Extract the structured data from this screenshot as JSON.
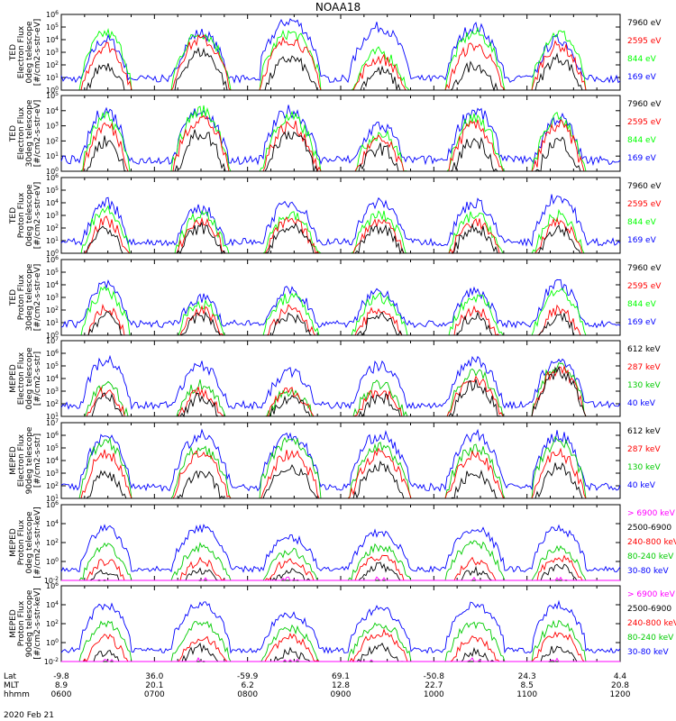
{
  "title": "NOAA18",
  "date_label": "2020 Feb 21",
  "chart_data": [
    {
      "type": "line",
      "title": "NOAA18",
      "ylabel": [
        "TED",
        "Electron Flux",
        "0deg telescope",
        "[#/cm2-s-str-eV]"
      ],
      "ylim_exp": [
        0,
        6
      ],
      "tick_labels": [
        "10^0",
        "10^1",
        "10^2",
        "10^3",
        "10^4",
        "10^5",
        "10^6"
      ],
      "series": [
        {
          "name": "7960 eV",
          "color": "#000000",
          "peak_values_log10": [
            2.0,
            3.0,
            2.5,
            1.5,
            2.0,
            2.5
          ]
        },
        {
          "name": "2595 eV",
          "color": "#ff0000",
          "peak_values_log10": [
            3.5,
            4.0,
            4.0,
            2.5,
            3.5,
            3.5
          ]
        },
        {
          "name": "844 eV",
          "color": "#00ff00",
          "peak_values_log10": [
            4.5,
            4.5,
            4.5,
            3.0,
            4.5,
            4.5
          ]
        },
        {
          "name": "169 eV",
          "color": "#0000ff",
          "peak_values_log10": [
            4.0,
            4.5,
            5.5,
            5.0,
            5.0,
            4.0
          ]
        }
      ]
    },
    {
      "type": "line",
      "ylabel": [
        "TED",
        "Electron Flux",
        "30deg telescope",
        "[#/cm2-s-str-eV]"
      ],
      "ylim_exp": [
        0,
        5
      ],
      "tick_labels": [
        "10^0",
        "10^1",
        "10^2",
        "10^3",
        "10^4",
        "10^5"
      ],
      "series": [
        {
          "name": "7960 eV",
          "color": "#000000",
          "peak_values_log10": [
            2.0,
            2.5,
            2.5,
            1.5,
            2.0,
            2.0
          ]
        },
        {
          "name": "2595 eV",
          "color": "#ff0000",
          "peak_values_log10": [
            3.0,
            3.5,
            3.0,
            2.0,
            3.0,
            3.0
          ]
        },
        {
          "name": "844 eV",
          "color": "#00ff00",
          "peak_values_log10": [
            3.5,
            4.0,
            3.5,
            2.5,
            3.5,
            3.5
          ]
        },
        {
          "name": "169 eV",
          "color": "#0000ff",
          "peak_values_log10": [
            4.0,
            4.0,
            4.0,
            3.0,
            4.0,
            3.5
          ]
        }
      ]
    },
    {
      "type": "line",
      "ylabel": [
        "TED",
        "Proton Flux",
        "0deg telescope",
        "[#/cm2-s-str-eV]"
      ],
      "ylim_exp": [
        0,
        6
      ],
      "tick_labels": [
        "10^0",
        "10^1",
        "10^2",
        "10^3",
        "10^4",
        "10^5",
        "10^6"
      ],
      "series": [
        {
          "name": "7960 eV",
          "color": "#000000",
          "peak_values_log10": [
            2.0,
            2.0,
            2.0,
            2.0,
            2.0,
            2.0
          ]
        },
        {
          "name": "2595 eV",
          "color": "#ff0000",
          "peak_values_log10": [
            2.5,
            2.5,
            2.5,
            2.5,
            2.5,
            2.5
          ]
        },
        {
          "name": "844 eV",
          "color": "#00ff00",
          "peak_values_log10": [
            3.5,
            3.0,
            3.0,
            3.0,
            3.0,
            3.0
          ]
        },
        {
          "name": "169 eV",
          "color": "#0000ff",
          "peak_values_log10": [
            4.0,
            3.5,
            4.0,
            4.0,
            4.0,
            4.5
          ]
        }
      ]
    },
    {
      "type": "line",
      "ylabel": [
        "TED",
        "Proton Flux",
        "30deg telescope",
        "[#/cm2-s-str-eV]"
      ],
      "ylim_exp": [
        0,
        6
      ],
      "tick_labels": [
        "10^0",
        "10^1",
        "10^2",
        "10^3",
        "10^4",
        "10^5",
        "10^6"
      ],
      "series": [
        {
          "name": "7960 eV",
          "color": "#000000",
          "peak_values_log10": [
            1.5,
            1.5,
            1.5,
            1.5,
            1.5,
            1.5
          ]
        },
        {
          "name": "2595 eV",
          "color": "#ff0000",
          "peak_values_log10": [
            2.0,
            2.0,
            2.0,
            2.0,
            2.0,
            2.0
          ]
        },
        {
          "name": "844 eV",
          "color": "#00ff00",
          "peak_values_log10": [
            3.5,
            2.5,
            3.0,
            3.0,
            3.0,
            3.5
          ]
        },
        {
          "name": "169 eV",
          "color": "#0000ff",
          "peak_values_log10": [
            4.0,
            3.0,
            3.5,
            3.5,
            3.5,
            4.0
          ]
        }
      ]
    },
    {
      "type": "line",
      "ylabel": [
        "MEPED",
        "Electron Flux",
        "0deg telescope",
        "[#/cm2-s-str]"
      ],
      "ylim_exp": [
        1,
        7
      ],
      "tick_labels": [
        "10^1",
        "10^2",
        "10^3",
        "10^4",
        "10^5",
        "10^6",
        "10^7"
      ],
      "series": [
        {
          "name": "612 keV",
          "color": "#000000",
          "peak_values_log10": [
            2.5,
            2.5,
            2.5,
            2.5,
            3.5,
            4.5
          ]
        },
        {
          "name": "287 keV",
          "color": "#ff0000",
          "peak_values_log10": [
            3.0,
            3.0,
            3.0,
            3.0,
            4.0,
            4.7
          ]
        },
        {
          "name": "130 keV",
          "color": "#00cc00",
          "peak_values_log10": [
            3.5,
            3.5,
            3.0,
            3.5,
            4.5,
            5.0
          ]
        },
        {
          "name": "40 keV",
          "color": "#0000ff",
          "peak_values_log10": [
            5.5,
            5.0,
            4.5,
            5.0,
            5.5,
            5.5
          ]
        }
      ]
    },
    {
      "type": "line",
      "ylabel": [
        "MEPED",
        "Electron Flux",
        "90deg telescope",
        "[#/cm2-s-str]"
      ],
      "ylim_exp": [
        1,
        7
      ],
      "tick_labels": [
        "10^1",
        "10^2",
        "10^3",
        "10^4",
        "10^5",
        "10^6",
        "10^7"
      ],
      "series": [
        {
          "name": "612 keV",
          "color": "#000000",
          "peak_values_log10": [
            3.0,
            3.0,
            3.5,
            3.5,
            3.0,
            3.5
          ]
        },
        {
          "name": "287 keV",
          "color": "#ff0000",
          "peak_values_log10": [
            4.5,
            4.5,
            4.5,
            4.5,
            4.5,
            4.5
          ]
        },
        {
          "name": "130 keV",
          "color": "#00cc00",
          "peak_values_log10": [
            5.5,
            5.0,
            5.5,
            5.0,
            5.0,
            5.5
          ]
        },
        {
          "name": "40 keV",
          "color": "#0000ff",
          "peak_values_log10": [
            6.0,
            6.0,
            6.0,
            6.0,
            6.0,
            6.0
          ]
        }
      ]
    },
    {
      "type": "line",
      "ylabel": [
        "MEPED",
        "Proton Flux",
        "0deg telescope",
        "[#/cm2-s-str-keV]"
      ],
      "ylim_exp": [
        -2,
        6
      ],
      "tick_labels": [
        "10^-2",
        "10^0",
        "10^2",
        "10^4",
        "10^6"
      ],
      "series": [
        {
          "name": "> 6900 keV",
          "color": "#ff00ff",
          "peak_values_log10": [
            -2.0,
            -2.0,
            -2.0,
            -2.0,
            -2.0,
            -2.0
          ]
        },
        {
          "name": "2500-6900",
          "color": "#000000",
          "peak_values_log10": [
            -1.0,
            -1.0,
            -1.0,
            -0.5,
            -1.0,
            -0.5
          ]
        },
        {
          "name": "240-800 keV",
          "color": "#ff0000",
          "peak_values_log10": [
            0.0,
            0.0,
            0.0,
            0.5,
            0.0,
            0.5
          ]
        },
        {
          "name": "80-240 keV",
          "color": "#00cc00",
          "peak_values_log10": [
            1.5,
            1.5,
            1.0,
            1.5,
            2.0,
            1.5
          ]
        },
        {
          "name": "30-80 keV",
          "color": "#0000ff",
          "peak_values_log10": [
            3.5,
            3.5,
            2.5,
            3.0,
            3.5,
            3.5
          ]
        }
      ]
    },
    {
      "type": "line",
      "ylabel": [
        "MEPED",
        "Proton Flux",
        "90deg telescope",
        "[#/cm2-s-str-keV]"
      ],
      "ylim_exp": [
        -2,
        6
      ],
      "tick_labels": [
        "10^-2",
        "10^0",
        "10^2",
        "10^4",
        "10^6"
      ],
      "series": [
        {
          "name": "> 6900 keV",
          "color": "#ff00ff",
          "peak_values_log10": [
            -2.0,
            -2.0,
            -2.0,
            -2.0,
            -2.0,
            -2.0
          ]
        },
        {
          "name": "2500-6900",
          "color": "#000000",
          "peak_values_log10": [
            -1.0,
            -0.5,
            -1.0,
            -0.5,
            -1.0,
            -0.5
          ]
        },
        {
          "name": "240-800 keV",
          "color": "#ff0000",
          "peak_values_log10": [
            0.5,
            0.5,
            0.5,
            1.0,
            0.5,
            1.0
          ]
        },
        {
          "name": "80-240 keV",
          "color": "#00cc00",
          "peak_values_log10": [
            2.0,
            2.0,
            1.5,
            2.0,
            2.0,
            2.0
          ]
        },
        {
          "name": "30-80 keV",
          "color": "#0000ff",
          "peak_values_log10": [
            4.0,
            4.0,
            3.0,
            3.5,
            4.0,
            4.0
          ]
        }
      ]
    }
  ],
  "x_axis": {
    "row_labels": [
      "Lat",
      "MLT",
      "hhmm"
    ],
    "time_range": [
      600,
      1200
    ],
    "ticks": [
      {
        "lat": "-9.8",
        "mlt": "8.9",
        "hhmm": "0600"
      },
      {
        "lat": "36.0",
        "mlt": "20.1",
        "hhmm": "0700"
      },
      {
        "lat": "-59.9",
        "mlt": "6.2",
        "hhmm": "0800"
      },
      {
        "lat": "69.1",
        "mlt": "12.8",
        "hhmm": "0900"
      },
      {
        "lat": "-50.8",
        "mlt": "22.7",
        "hhmm": "1000"
      },
      {
        "lat": "24.3",
        "mlt": "8.5",
        "hhmm": "1100"
      },
      {
        "lat": "4.4",
        "mlt": "20.8",
        "hhmm": "1200"
      }
    ]
  }
}
